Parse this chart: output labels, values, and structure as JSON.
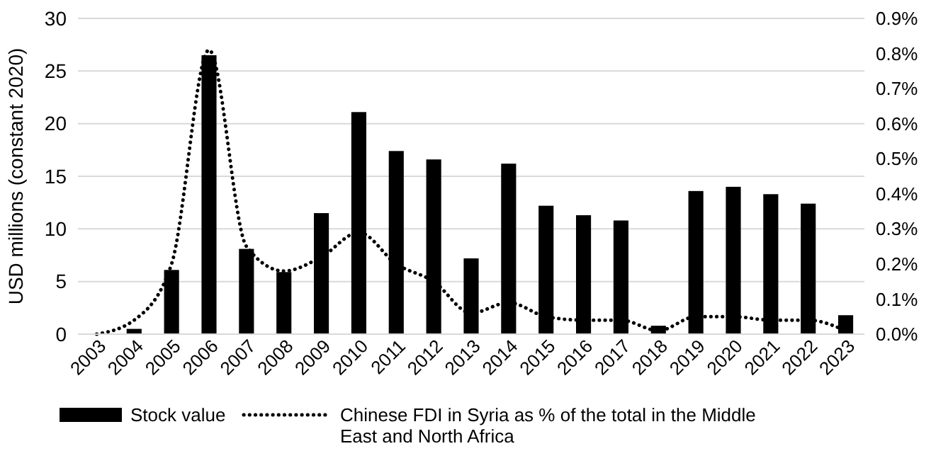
{
  "chart_data": {
    "type": "bar",
    "ylabel": "USD millions (constant 2020)",
    "categories": [
      "2003",
      "2004",
      "2005",
      "2006",
      "2007",
      "2008",
      "2009",
      "2010",
      "2011",
      "2012",
      "2013",
      "2014",
      "2015",
      "2016",
      "2017",
      "2018",
      "2019",
      "2020",
      "2021",
      "2022",
      "2023"
    ],
    "series": [
      {
        "name": "Stock value",
        "color": "#000000",
        "values": [
          0,
          0.5,
          6.1,
          26.5,
          8.1,
          5.9,
          11.5,
          21.1,
          17.4,
          16.6,
          7.2,
          16.2,
          12.2,
          11.3,
          10.8,
          0.8,
          13.6,
          14.0,
          13.3,
          12.4,
          1.8
        ]
      },
      {
        "name": "Chinese FDI in Syria as % of the total in the Middle East and North Africa",
        "type": "line",
        "axis": "y2",
        "color": "#000000",
        "line_style": "dotted",
        "values": [
          0,
          0.04,
          0.2,
          0.81,
          0.25,
          0.18,
          0.22,
          0.29,
          0.2,
          0.15,
          0.06,
          0.09,
          0.05,
          0.04,
          0.04,
          0.01,
          0.05,
          0.05,
          0.04,
          0.04,
          0.01
        ]
      }
    ],
    "ylim": [
      0,
      30
    ],
    "yticks": [
      0,
      5,
      10,
      15,
      20,
      25,
      30
    ],
    "y2lim": [
      0,
      0.9
    ],
    "y2ticks": [
      {
        "value": 0,
        "label": "0.0%"
      },
      {
        "value": 0.1,
        "label": "0.1%"
      },
      {
        "value": 0.2,
        "label": "0.2%"
      },
      {
        "value": 0.3,
        "label": "0.3%"
      },
      {
        "value": 0.4,
        "label": "0.4%"
      },
      {
        "value": 0.5,
        "label": "0.5%"
      },
      {
        "value": 0.6,
        "label": "0.6%"
      },
      {
        "value": 0.7,
        "label": "0.7%"
      },
      {
        "value": 0.8,
        "label": "0.8%"
      },
      {
        "value": 0.9,
        "label": "0.9%"
      }
    ],
    "grid": "y",
    "legend": "bottom",
    "marker": "none"
  }
}
